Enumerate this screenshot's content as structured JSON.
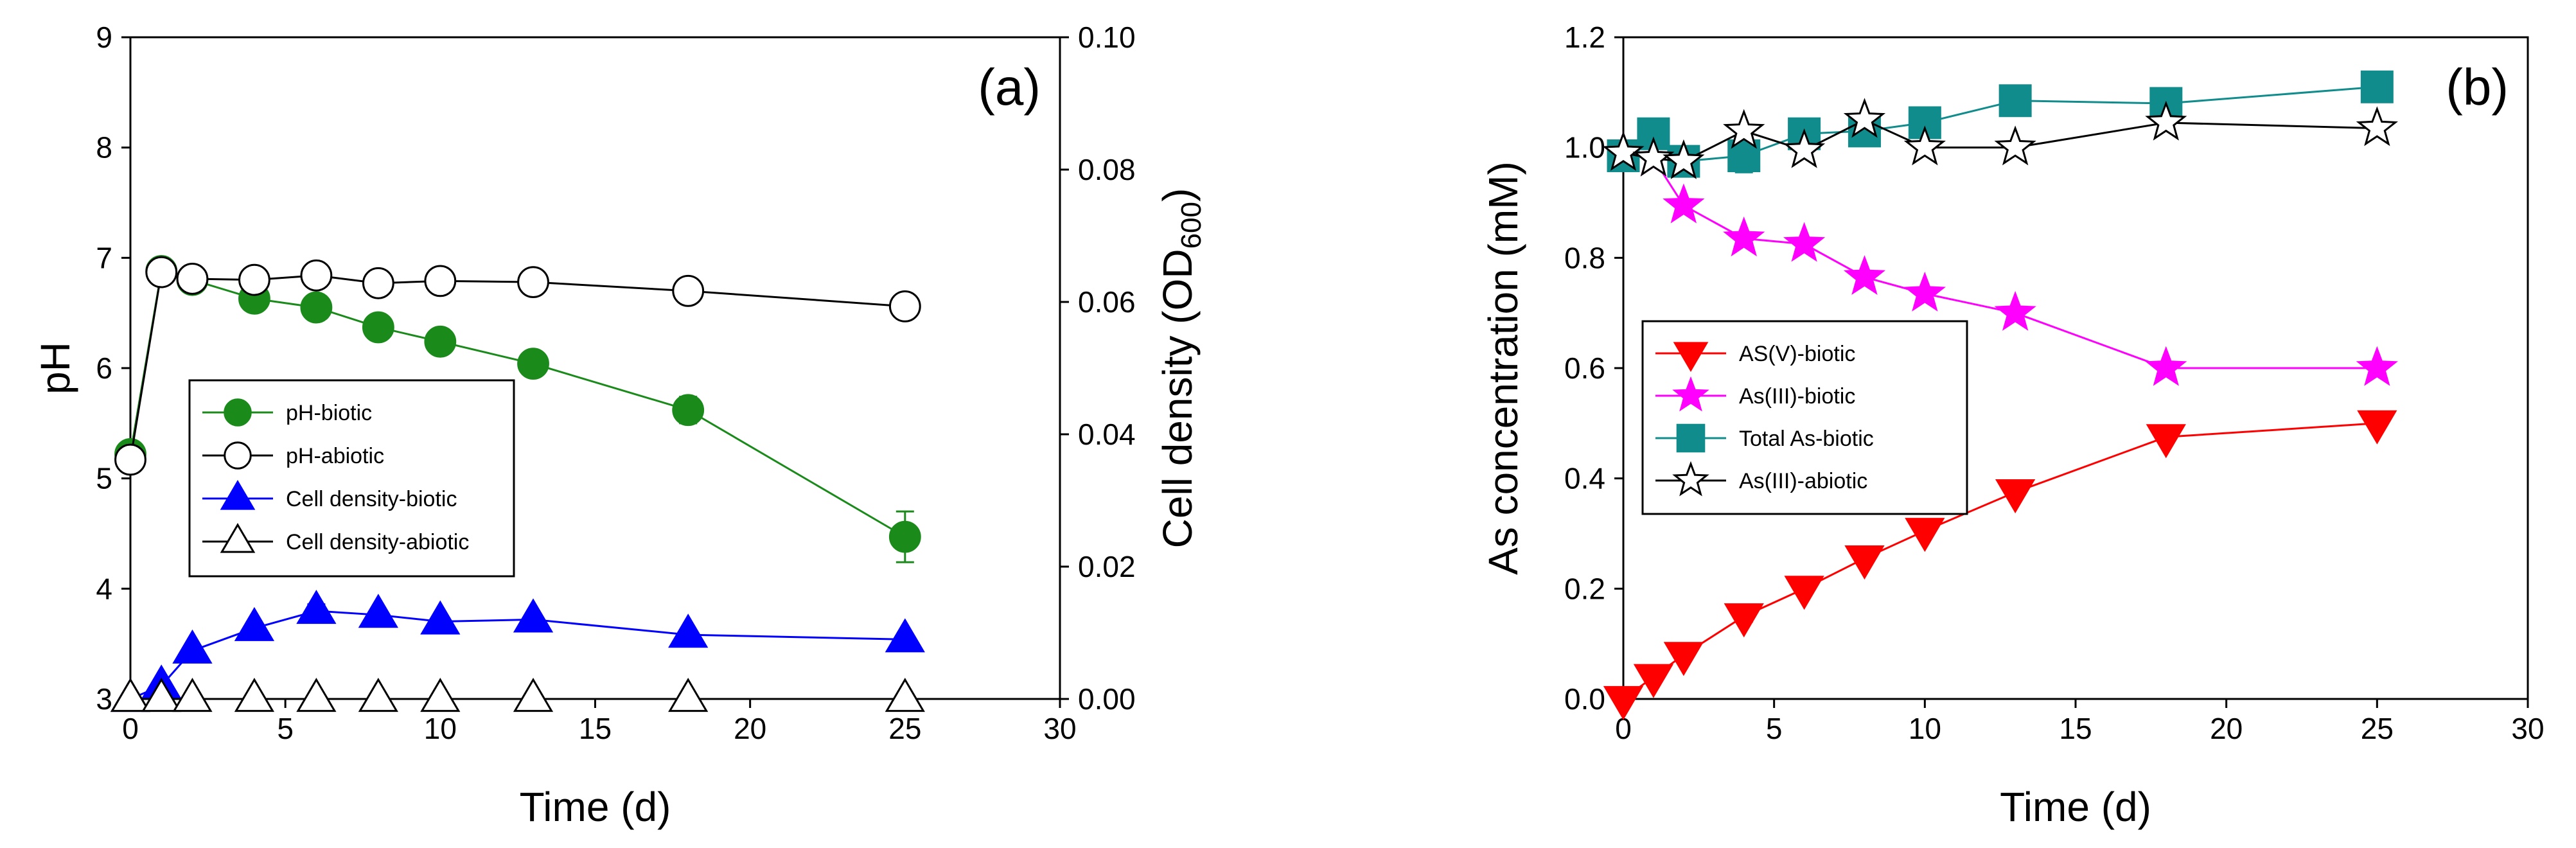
{
  "chart_data": [
    {
      "type": "line",
      "panel_label": "(a)",
      "xlabel": "Time (d)",
      "ylabel": "pH",
      "y2label": "Cell density (OD",
      "y2label_sub": "600",
      "y2label_close": ")",
      "xlim": [
        0,
        30
      ],
      "ylim": [
        3,
        9
      ],
      "y2lim": [
        0,
        0.1
      ],
      "xticks": [
        0,
        5,
        10,
        15,
        20,
        25,
        30
      ],
      "yticks": [
        3,
        4,
        5,
        6,
        7,
        8,
        9
      ],
      "y2ticks": [
        "0.00",
        "0.02",
        "0.04",
        "0.06",
        "0.08",
        "0.10"
      ],
      "legend_position": "lower-left",
      "series": [
        {
          "name": "pH-biotic",
          "axis": "left",
          "marker": "circle",
          "fill": "#1a8a1a",
          "line": "#1a8a1a",
          "x": [
            0,
            1,
            2,
            4,
            6,
            8,
            10,
            13,
            18,
            25
          ],
          "y": [
            5.22,
            6.88,
            6.8,
            6.63,
            6.55,
            6.37,
            6.24,
            6.04,
            5.62,
            4.47
          ],
          "err": [
            0.03,
            0.04,
            0.03,
            0.05,
            0.04,
            0.04,
            0.05,
            0.04,
            0.12,
            0.23
          ]
        },
        {
          "name": "pH-abiotic",
          "axis": "left",
          "marker": "circle",
          "fill": "#ffffff",
          "line": "#000000",
          "x": [
            0,
            1,
            2,
            4,
            6,
            8,
            10,
            13,
            18,
            25
          ],
          "y": [
            5.17,
            6.87,
            6.81,
            6.8,
            6.84,
            6.77,
            6.79,
            6.78,
            6.7,
            6.56
          ],
          "err": [
            0,
            0,
            0,
            0,
            0,
            0,
            0,
            0,
            0,
            0
          ]
        },
        {
          "name": "Cell density-biotic",
          "axis": "right",
          "marker": "triangle-up",
          "fill": "#0000ff",
          "line": "#0000ff",
          "x": [
            0,
            1,
            2,
            4,
            6,
            8,
            10,
            13,
            18,
            25
          ],
          "y": [
            0.0,
            0.002,
            0.0073,
            0.0107,
            0.0133,
            0.0127,
            0.0117,
            0.012,
            0.0097,
            0.009
          ],
          "err": [
            0,
            0,
            0,
            0,
            0.001,
            0,
            0,
            0,
            0,
            0
          ]
        },
        {
          "name": "Cell density-abiotic",
          "axis": "right",
          "marker": "triangle-up",
          "fill": "#ffffff",
          "line": "#000000",
          "x": [
            0,
            1,
            2,
            4,
            6,
            8,
            10,
            13,
            18,
            25
          ],
          "y": [
            0,
            0,
            0,
            0,
            0,
            0,
            0,
            0,
            0,
            0
          ],
          "err": [
            0,
            0,
            0,
            0,
            0,
            0,
            0,
            0,
            0,
            0
          ]
        }
      ]
    },
    {
      "type": "line",
      "panel_label": "(b)",
      "xlabel": "Time (d)",
      "ylabel": "As concentration (mM)",
      "xlim": [
        0,
        30
      ],
      "ylim": [
        0,
        1.2
      ],
      "xticks": [
        0,
        5,
        10,
        15,
        20,
        25,
        30
      ],
      "yticks": [
        "0.0",
        "0.2",
        "0.4",
        "0.6",
        "0.8",
        "1.0",
        "1.2"
      ],
      "legend_position": "center-left",
      "series": [
        {
          "name": "AS(V)-biotic",
          "marker": "triangle-down",
          "fill": "#ff0000",
          "line": "#ff0000",
          "x": [
            0,
            1,
            2,
            4,
            6,
            8,
            10,
            13,
            18,
            25
          ],
          "y": [
            0.0,
            0.04,
            0.08,
            0.15,
            0.2,
            0.255,
            0.305,
            0.375,
            0.475,
            0.5
          ],
          "err": [
            0,
            0,
            0,
            0.01,
            0,
            0,
            0,
            0,
            0,
            0
          ]
        },
        {
          "name": "As(III)-biotic",
          "marker": "star",
          "fill": "#ff00ff",
          "line": "#ff00ff",
          "x": [
            0,
            1,
            2,
            4,
            6,
            8,
            10,
            13,
            18,
            25
          ],
          "y": [
            0.99,
            0.98,
            0.895,
            0.835,
            0.825,
            0.765,
            0.735,
            0.7,
            0.6,
            0.6
          ],
          "err": [
            0,
            0,
            0,
            0,
            0,
            0,
            0,
            0,
            0,
            0
          ]
        },
        {
          "name": "Total As-biotic",
          "marker": "square",
          "fill": "#108c8c",
          "line": "#108c8c",
          "x": [
            0,
            1,
            2,
            4,
            6,
            8,
            10,
            13,
            18,
            25
          ],
          "y": [
            0.985,
            1.025,
            0.975,
            0.985,
            1.025,
            1.03,
            1.045,
            1.085,
            1.08,
            1.11
          ],
          "err": [
            0,
            0,
            0,
            0.03,
            0,
            0,
            0,
            0,
            0,
            0
          ]
        },
        {
          "name": "As(III)-abiotic",
          "marker": "star",
          "fill": "#ffffff",
          "line": "#000000",
          "x": [
            0,
            1,
            2,
            4,
            6,
            8,
            10,
            13,
            18,
            25
          ],
          "y": [
            0.99,
            0.98,
            0.975,
            1.03,
            0.995,
            1.05,
            1.0,
            1.0,
            1.045,
            1.035
          ],
          "err": [
            0,
            0,
            0,
            0,
            0,
            0,
            0,
            0,
            0,
            0
          ]
        }
      ]
    }
  ]
}
